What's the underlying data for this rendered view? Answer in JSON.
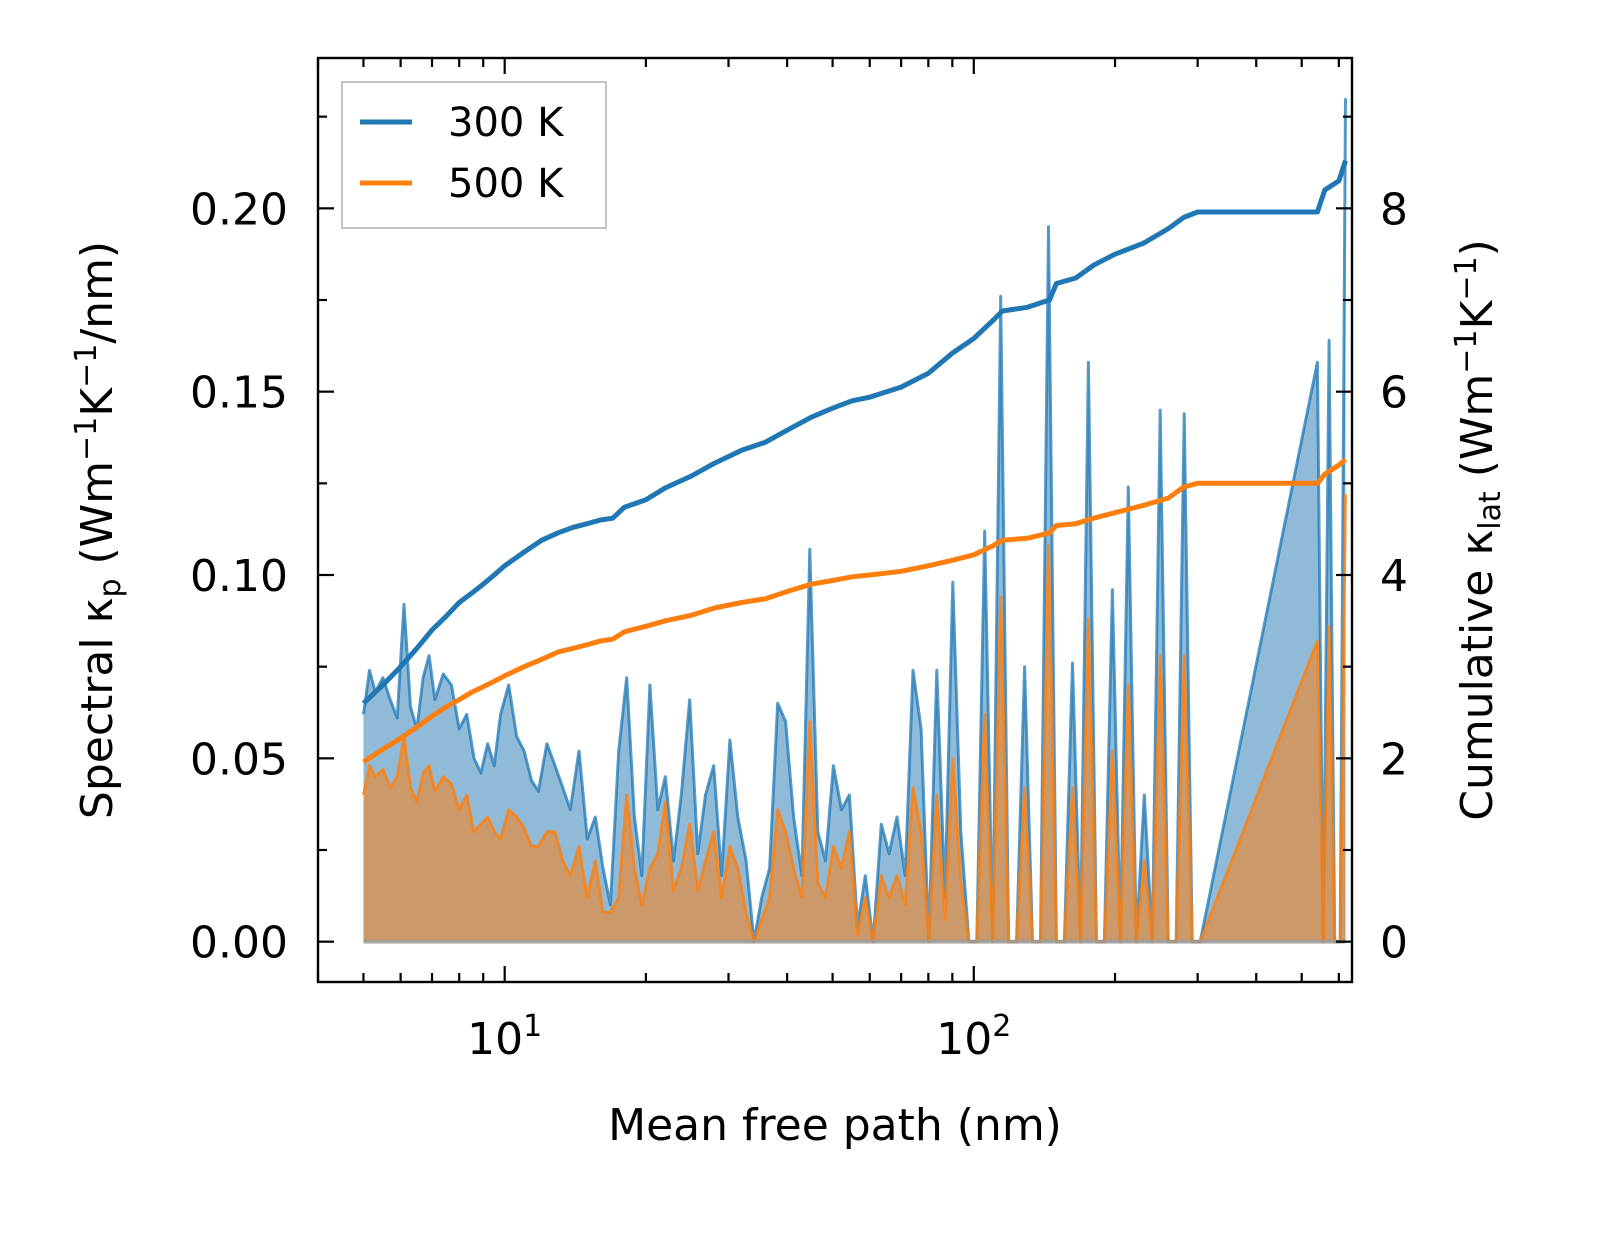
{
  "chart_data": {
    "type": "line",
    "xlabel": "Mean free path (nm)",
    "ylabel_left": "Spectral κp (Wm−1K−1/nm)",
    "ylabel_right": "Cumulative κlat (Wm−1K−1)",
    "ylabel_left_parts": [
      "Spectral κ",
      "p",
      " (Wm",
      "−1",
      "K",
      "−1",
      "/nm)"
    ],
    "ylabel_right_parts": [
      "Cumulative κ",
      "lat",
      " (Wm",
      "−1",
      "K",
      "−1",
      ")"
    ],
    "x_scale": "log",
    "xlim": [
      4.0,
      640
    ],
    "ylim_left": [
      -0.011,
      0.241
    ],
    "ylim_right": [
      -0.44,
      9.64
    ],
    "x_ticks": [
      10,
      100
    ],
    "x_tick_labels": [
      {
        "base": "10",
        "exp": "1"
      },
      {
        "base": "10",
        "exp": "2"
      }
    ],
    "y_left_ticks": [
      0.0,
      0.05,
      0.1,
      0.15,
      0.2
    ],
    "y_left_tick_labels": [
      "0.00",
      "0.05",
      "0.10",
      "0.15",
      "0.20"
    ],
    "y_right_ticks": [
      0,
      2,
      4,
      6,
      8
    ],
    "y_right_tick_labels": [
      "0",
      "2",
      "4",
      "6",
      "8"
    ],
    "legend": {
      "location": "top-left",
      "entries": [
        "300 K",
        "500 K"
      ]
    },
    "colors": {
      "300 K": "#1f77b4",
      "500 K": "#ff7f0e",
      "fill_300": "#7fb1d8",
      "fill_500": "#c59b72"
    },
    "spectral_300K": {
      "x": [
        5.0,
        5.15,
        5.3,
        5.5,
        5.7,
        5.9,
        6.1,
        6.3,
        6.5,
        6.7,
        6.9,
        7.1,
        7.4,
        7.7,
        8.0,
        8.3,
        8.6,
        8.9,
        9.2,
        9.5,
        9.8,
        10.2,
        10.6,
        11.0,
        11.4,
        11.8,
        12.3,
        12.8,
        13.3,
        13.8,
        14.4,
        15.0,
        15.6,
        16.2,
        16.8,
        17.5,
        18.2,
        18.9,
        19.6,
        20.4,
        21.2,
        22.0,
        22.9,
        23.8,
        24.8,
        25.8,
        26.8,
        27.9,
        29.0,
        30.2,
        31.4,
        32.7,
        34.0,
        35.3,
        36.7,
        38.2,
        39.7,
        41.3,
        43.0,
        44.7,
        46.5,
        48.3,
        50.2,
        52.2,
        54.3,
        56.5,
        58.7,
        61.0,
        63.5,
        66.0,
        68.6,
        71.4,
        74.2,
        77.2,
        80.2,
        83.4,
        86.8,
        90.2,
        93.8,
        97.6,
        101.5,
        105.5,
        109.7,
        114.1,
        118.6,
        123.4,
        128.3,
        133.4,
        138.7,
        144.3,
        150.0,
        156.0,
        162.3,
        168.8,
        175.5,
        182.5,
        189.8,
        197.4,
        205.3,
        213.5,
        222.0,
        230.9,
        240.1,
        249.7,
        259.7,
        270.1,
        280.9,
        292.1,
        303.8,
        540.0,
        556.0,
        572.0,
        588.0,
        604.0,
        620.0
      ],
      "values": [
        0.062,
        0.074,
        0.068,
        0.072,
        0.066,
        0.061,
        0.092,
        0.064,
        0.058,
        0.072,
        0.078,
        0.066,
        0.073,
        0.07,
        0.058,
        0.062,
        0.05,
        0.046,
        0.054,
        0.048,
        0.062,
        0.07,
        0.056,
        0.052,
        0.044,
        0.041,
        0.054,
        0.048,
        0.042,
        0.036,
        0.052,
        0.028,
        0.034,
        0.02,
        0.01,
        0.052,
        0.072,
        0.034,
        0.018,
        0.07,
        0.036,
        0.045,
        0.022,
        0.04,
        0.066,
        0.024,
        0.04,
        0.048,
        0.018,
        0.055,
        0.034,
        0.022,
        0.0,
        0.012,
        0.02,
        0.065,
        0.06,
        0.034,
        0.018,
        0.107,
        0.03,
        0.022,
        0.048,
        0.036,
        0.04,
        0.004,
        0.018,
        0.0,
        0.032,
        0.024,
        0.034,
        0.018,
        0.074,
        0.058,
        0.0,
        0.074,
        0.012,
        0.098,
        0.03,
        0.0,
        0.0,
        0.112,
        0.0,
        0.176,
        0.0,
        0.0,
        0.075,
        0.0,
        0.0,
        0.195,
        0.0,
        0.0,
        0.076,
        0.0,
        0.158,
        0.0,
        0.0,
        0.096,
        0.0,
        0.124,
        0.0,
        0.04,
        0.0,
        0.145,
        0.0,
        0.0,
        0.144,
        0.0,
        0.0,
        0.158,
        0.0,
        0.164,
        0.0,
        0.0,
        0.23
      ]
    },
    "spectral_500K": {
      "x": [
        5.0,
        5.15,
        5.3,
        5.5,
        5.7,
        5.9,
        6.1,
        6.3,
        6.5,
        6.7,
        6.9,
        7.1,
        7.4,
        7.7,
        8.0,
        8.3,
        8.6,
        8.9,
        9.2,
        9.5,
        9.8,
        10.2,
        10.6,
        11.0,
        11.4,
        11.8,
        12.3,
        12.8,
        13.3,
        13.8,
        14.4,
        15.0,
        15.6,
        16.2,
        16.8,
        17.5,
        18.2,
        18.9,
        19.6,
        20.4,
        21.2,
        22.0,
        22.9,
        23.8,
        24.8,
        25.8,
        26.8,
        27.9,
        29.0,
        30.2,
        31.4,
        32.7,
        34.0,
        35.3,
        36.7,
        38.2,
        39.7,
        41.3,
        43.0,
        44.7,
        46.5,
        48.3,
        50.2,
        52.2,
        54.3,
        56.5,
        58.7,
        61.0,
        63.5,
        66.0,
        68.6,
        71.4,
        74.2,
        77.2,
        80.2,
        83.4,
        86.8,
        90.2,
        93.8,
        97.6,
        101.5,
        105.5,
        109.7,
        114.1,
        118.6,
        123.4,
        128.3,
        133.4,
        138.7,
        144.3,
        150.0,
        156.0,
        162.3,
        168.8,
        175.5,
        182.5,
        189.8,
        197.4,
        205.3,
        213.5,
        222.0,
        230.9,
        240.1,
        249.7,
        259.7,
        270.1,
        280.9,
        292.1,
        303.8,
        540.0,
        556.0,
        572.0,
        588.0,
        604.0,
        620.0
      ],
      "values": [
        0.04,
        0.048,
        0.045,
        0.047,
        0.042,
        0.045,
        0.056,
        0.042,
        0.038,
        0.046,
        0.048,
        0.041,
        0.045,
        0.043,
        0.036,
        0.04,
        0.03,
        0.032,
        0.034,
        0.03,
        0.028,
        0.036,
        0.034,
        0.031,
        0.026,
        0.026,
        0.03,
        0.03,
        0.022,
        0.018,
        0.026,
        0.012,
        0.022,
        0.008,
        0.008,
        0.012,
        0.04,
        0.02,
        0.01,
        0.02,
        0.024,
        0.038,
        0.014,
        0.02,
        0.032,
        0.014,
        0.022,
        0.03,
        0.012,
        0.026,
        0.02,
        0.008,
        0.0,
        0.006,
        0.012,
        0.036,
        0.03,
        0.02,
        0.012,
        0.06,
        0.016,
        0.012,
        0.026,
        0.02,
        0.03,
        0.002,
        0.012,
        0.0,
        0.018,
        0.012,
        0.018,
        0.01,
        0.042,
        0.03,
        0.0,
        0.04,
        0.006,
        0.05,
        0.016,
        0.0,
        0.0,
        0.062,
        0.0,
        0.094,
        0.0,
        0.0,
        0.042,
        0.0,
        0.0,
        0.108,
        0.0,
        0.0,
        0.042,
        0.0,
        0.088,
        0.0,
        0.0,
        0.052,
        0.0,
        0.07,
        0.0,
        0.022,
        0.0,
        0.078,
        0.0,
        0.0,
        0.078,
        0.0,
        0.0,
        0.082,
        0.0,
        0.086,
        0.0,
        0.0,
        0.122
      ]
    },
    "cumulative_300K": {
      "x": [
        5.0,
        5.5,
        6.0,
        6.5,
        7.0,
        7.5,
        8.0,
        8.5,
        9.0,
        9.5,
        10.0,
        11.0,
        12.0,
        13.0,
        14.0,
        15.0,
        16.0,
        17.0,
        18.0,
        20.0,
        22.0,
        25.0,
        28.0,
        32.0,
        36.0,
        40.0,
        45.0,
        50.0,
        55.0,
        60.0,
        70.0,
        80.0,
        90.0,
        100.0,
        110.0,
        115.0,
        130.0,
        145.0,
        150.0,
        165.0,
        180.0,
        200.0,
        230.0,
        260.0,
        280.0,
        300.0,
        400.0,
        540.0,
        560.0,
        600.0,
        620.0
      ],
      "values": [
        2.6,
        2.8,
        3.0,
        3.2,
        3.4,
        3.55,
        3.7,
        3.8,
        3.9,
        4.0,
        4.1,
        4.25,
        4.38,
        4.46,
        4.52,
        4.56,
        4.6,
        4.62,
        4.74,
        4.82,
        4.95,
        5.08,
        5.22,
        5.36,
        5.45,
        5.58,
        5.72,
        5.82,
        5.9,
        5.94,
        6.05,
        6.2,
        6.42,
        6.58,
        6.78,
        6.88,
        6.92,
        7.0,
        7.18,
        7.24,
        7.38,
        7.5,
        7.62,
        7.78,
        7.9,
        7.96,
        7.96,
        7.96,
        8.2,
        8.3,
        8.52
      ]
    },
    "cumulative_500K": {
      "x": [
        5.0,
        5.5,
        6.0,
        6.5,
        7.0,
        7.5,
        8.0,
        8.5,
        9.0,
        9.5,
        10.0,
        11.0,
        12.0,
        13.0,
        14.0,
        15.0,
        16.0,
        17.0,
        18.0,
        20.0,
        22.0,
        25.0,
        28.0,
        32.0,
        36.0,
        40.0,
        45.0,
        50.0,
        55.0,
        60.0,
        70.0,
        80.0,
        90.0,
        100.0,
        110.0,
        115.0,
        130.0,
        145.0,
        150.0,
        165.0,
        180.0,
        200.0,
        230.0,
        260.0,
        280.0,
        300.0,
        400.0,
        540.0,
        560.0,
        600.0,
        620.0
      ],
      "values": [
        1.96,
        2.1,
        2.22,
        2.34,
        2.46,
        2.56,
        2.64,
        2.72,
        2.78,
        2.84,
        2.9,
        3.0,
        3.08,
        3.16,
        3.2,
        3.24,
        3.28,
        3.3,
        3.38,
        3.44,
        3.5,
        3.56,
        3.64,
        3.7,
        3.74,
        3.82,
        3.9,
        3.94,
        3.98,
        4.0,
        4.04,
        4.1,
        4.16,
        4.22,
        4.32,
        4.38,
        4.4,
        4.46,
        4.54,
        4.56,
        4.62,
        4.68,
        4.76,
        4.84,
        4.96,
        5.0,
        5.0,
        5.0,
        5.1,
        5.2,
        5.26
      ]
    }
  }
}
